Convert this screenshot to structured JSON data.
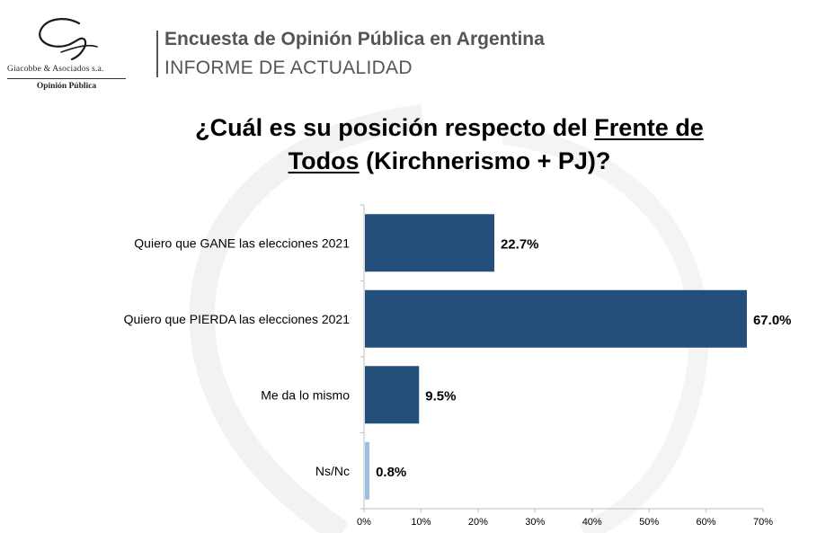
{
  "logo": {
    "company": "Giacobbe & Asociados s.a.",
    "subtitle": "Opinión Pública"
  },
  "header": {
    "title": "Encuesta de Opinión Pública en Argentina",
    "subtitle": "INFORME DE ACTUALIDAD"
  },
  "question": {
    "part1": "¿Cuál es su posición respecto del ",
    "underlined1": "Frente de",
    "underlined2": "Todos",
    "part2": " (Kirchnerismo + PJ)?"
  },
  "colors": {
    "bar_primary": "#244f7a",
    "bar_secondary": "#9dbfe0",
    "axis": "#bfbfbf"
  },
  "chart_data": {
    "type": "bar",
    "orientation": "horizontal",
    "title": "¿Cuál es su posición respecto del Frente de Todos (Kirchnerismo + PJ)?",
    "categories": [
      "Quiero que GANE las elecciones 2021",
      "Quiero que  PIERDA las elecciones 2021",
      "Me da lo mismo",
      "Ns/Nc"
    ],
    "values": [
      22.7,
      67.0,
      9.5,
      0.8
    ],
    "value_labels": [
      "22.7%",
      "67.0%",
      "9.5%",
      "0.8%"
    ],
    "bar_colors": [
      "#244f7a",
      "#244f7a",
      "#244f7a",
      "#9dbfe0"
    ],
    "xlim": [
      0,
      70
    ],
    "xticks": [
      0,
      10,
      20,
      30,
      40,
      50,
      60,
      70
    ],
    "xtick_labels": [
      "0%",
      "10%",
      "20%",
      "30%",
      "40%",
      "50%",
      "60%",
      "70%"
    ],
    "xlabel": "",
    "ylabel": "",
    "grid": false,
    "legend": "none"
  }
}
